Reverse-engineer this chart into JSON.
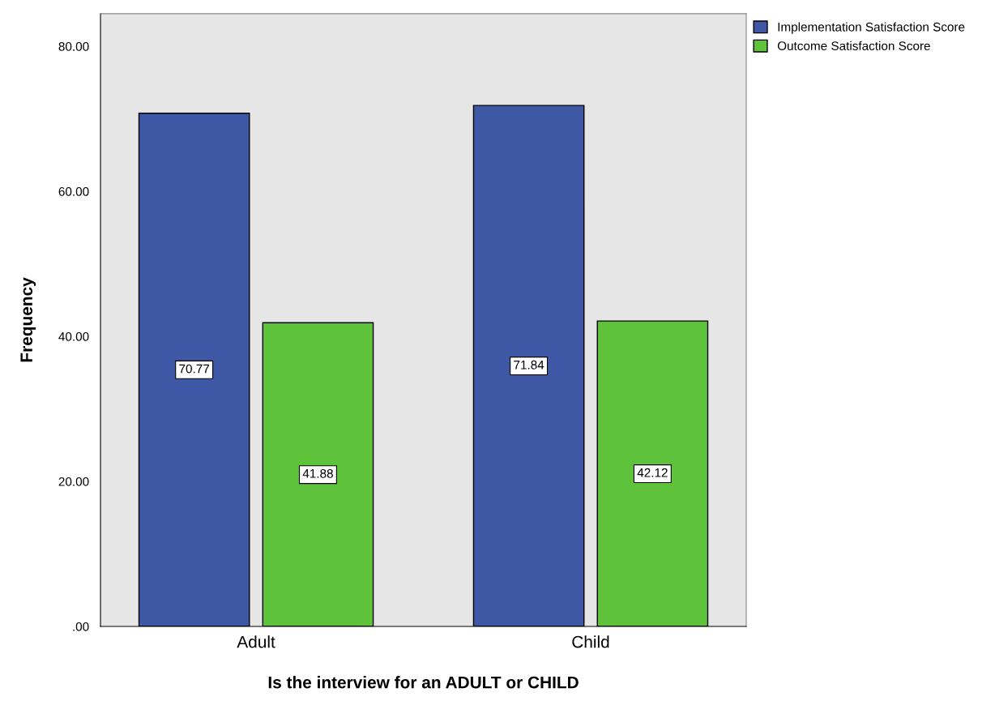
{
  "chart_data": {
    "type": "bar",
    "xlabel": "Is the interview for an ADULT or CHILD",
    "ylabel": "Frequency",
    "categories": [
      "Adult",
      "Child"
    ],
    "series": [
      {
        "name": "Implementation Satisfaction Score",
        "color": "#3f58a6",
        "values": [
          70.77,
          71.84
        ]
      },
      {
        "name": "Outcome Satisfaction Score",
        "color": "#5ec23a",
        "values": [
          41.88,
          42.12
        ]
      }
    ],
    "ylim": [
      0,
      84.5
    ],
    "yticks": [
      {
        "value": 0,
        "label": ".00"
      },
      {
        "value": 20,
        "label": "20.00"
      },
      {
        "value": 40,
        "label": "40.00"
      },
      {
        "value": 60,
        "label": "60.00"
      },
      {
        "value": 80,
        "label": "80.00"
      }
    ],
    "data_labels": true,
    "grid": false,
    "legend": "top right"
  }
}
